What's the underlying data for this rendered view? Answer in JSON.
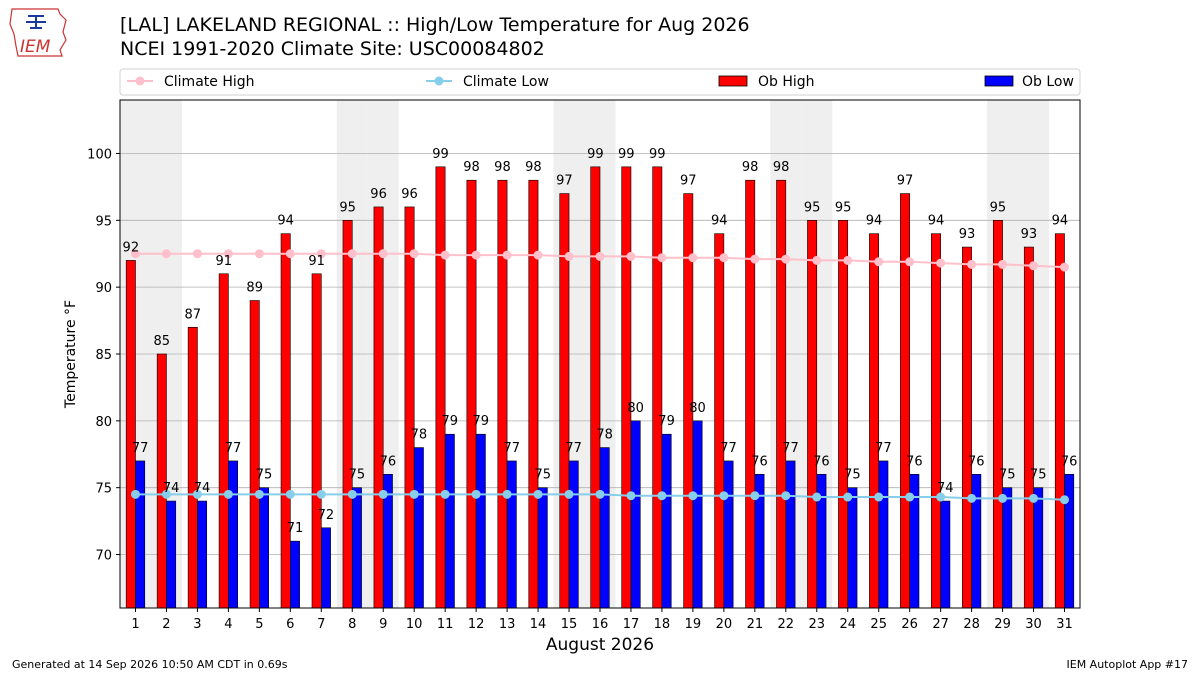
{
  "header": {
    "logo_text": "IEM",
    "title_line1": "[LAL] LAKELAND REGIONAL :: High/Low Temperature for Aug 2026",
    "title_line2": "NCEI 1991-2020 Climate Site: USC00084802"
  },
  "footer": {
    "generated": "Generated at 14 Sep 2026 10:50 AM CDT in 0.69s",
    "app": "IEM Autoplot App #17"
  },
  "legend": {
    "placement": "top",
    "items": [
      {
        "label": "Climate High",
        "kind": "line",
        "color": "#ffc0cb"
      },
      {
        "label": "Climate Low",
        "kind": "line",
        "color": "#87ceeb"
      },
      {
        "label": "Ob High",
        "kind": "bar",
        "color": "#ff0000"
      },
      {
        "label": "Ob Low",
        "kind": "bar",
        "color": "#0000ff"
      }
    ]
  },
  "colors": {
    "ob_high": "#ff0000",
    "ob_low": "#0000ff",
    "climate_high": "#ffc0cb",
    "climate_low": "#87ceeb",
    "weekend_shade": "#efefef",
    "grid": "#b0b0b0"
  },
  "chart_data": {
    "type": "bar",
    "xlabel": "August 2026",
    "ylabel": "Temperature °F",
    "ylim": [
      66,
      104
    ],
    "yticks": [
      70,
      75,
      80,
      85,
      90,
      95,
      100
    ],
    "grid": true,
    "categories": [
      "1",
      "2",
      "3",
      "4",
      "5",
      "6",
      "7",
      "8",
      "9",
      "10",
      "11",
      "12",
      "13",
      "14",
      "15",
      "16",
      "17",
      "18",
      "19",
      "20",
      "21",
      "22",
      "23",
      "24",
      "25",
      "26",
      "27",
      "28",
      "29",
      "30",
      "31"
    ],
    "shaded_days": [
      1,
      2,
      8,
      9,
      15,
      16,
      22,
      23,
      29,
      30
    ],
    "series": [
      {
        "name": "Ob High",
        "kind": "bar",
        "values": [
          92,
          85,
          87,
          91,
          89,
          94,
          91,
          95,
          96,
          96,
          99,
          98,
          98,
          98,
          97,
          99,
          99,
          99,
          97,
          94,
          98,
          98,
          95,
          95,
          94,
          97,
          94,
          93,
          95,
          93,
          94
        ]
      },
      {
        "name": "Ob Low",
        "kind": "bar",
        "values": [
          77,
          74,
          74,
          77,
          75,
          71,
          72,
          75,
          76,
          78,
          79,
          79,
          77,
          75,
          77,
          78,
          80,
          79,
          80,
          77,
          76,
          77,
          76,
          75,
          77,
          76,
          74,
          76,
          75,
          75,
          76
        ]
      },
      {
        "name": "Climate High",
        "kind": "line",
        "values": [
          92.5,
          92.5,
          92.5,
          92.5,
          92.5,
          92.5,
          92.5,
          92.5,
          92.5,
          92.5,
          92.4,
          92.4,
          92.4,
          92.4,
          92.3,
          92.3,
          92.3,
          92.2,
          92.2,
          92.2,
          92.1,
          92.1,
          92.0,
          92.0,
          91.9,
          91.9,
          91.8,
          91.7,
          91.7,
          91.6,
          91.5
        ]
      },
      {
        "name": "Climate Low",
        "kind": "line",
        "values": [
          74.5,
          74.5,
          74.5,
          74.5,
          74.5,
          74.5,
          74.5,
          74.5,
          74.5,
          74.5,
          74.5,
          74.5,
          74.5,
          74.5,
          74.5,
          74.5,
          74.4,
          74.4,
          74.4,
          74.4,
          74.4,
          74.4,
          74.3,
          74.3,
          74.3,
          74.3,
          74.3,
          74.2,
          74.2,
          74.2,
          74.1
        ]
      }
    ]
  }
}
